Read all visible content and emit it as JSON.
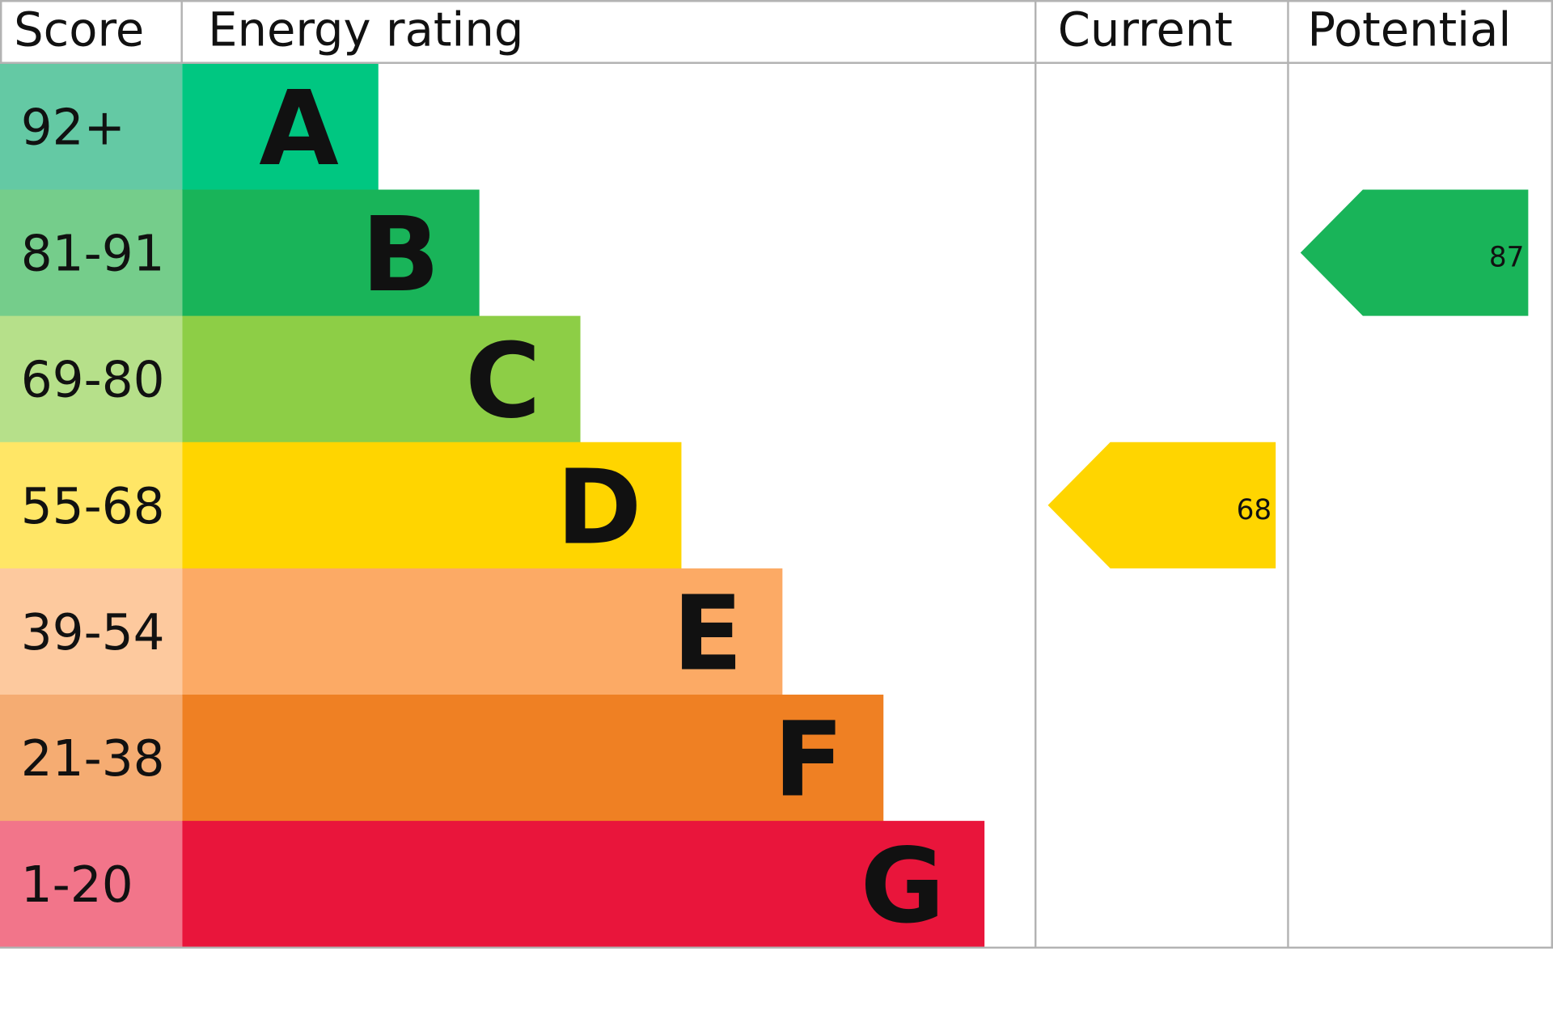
{
  "chart_data": {
    "type": "table",
    "headers": {
      "score": "Score",
      "rating": "Energy rating",
      "current": "Current",
      "potential": "Potential"
    },
    "bands": [
      {
        "score": "92+",
        "letter": "A",
        "color": "#00c781",
        "score_color": "#64c9a4"
      },
      {
        "score": "81-91",
        "letter": "B",
        "color": "#19b459",
        "score_color": "#75cd8b"
      },
      {
        "score": "69-80",
        "letter": "C",
        "color": "#8dce46",
        "score_color": "#b6e08a"
      },
      {
        "score": "55-68",
        "letter": "D",
        "color": "#ffd500",
        "score_color": "#ffe666"
      },
      {
        "score": "39-54",
        "letter": "E",
        "color": "#fcaa65",
        "score_color": "#fdc99e"
      },
      {
        "score": "21-38",
        "letter": "F",
        "color": "#ef8023",
        "score_color": "#f5ac72"
      },
      {
        "score": "1-20",
        "letter": "G",
        "color": "#e9153b",
        "score_color": "#f2758a"
      }
    ],
    "current": {
      "value": "68",
      "band": "D"
    },
    "potential": {
      "value": "87",
      "band": "B"
    },
    "grid_color": "#b3b3b3"
  }
}
